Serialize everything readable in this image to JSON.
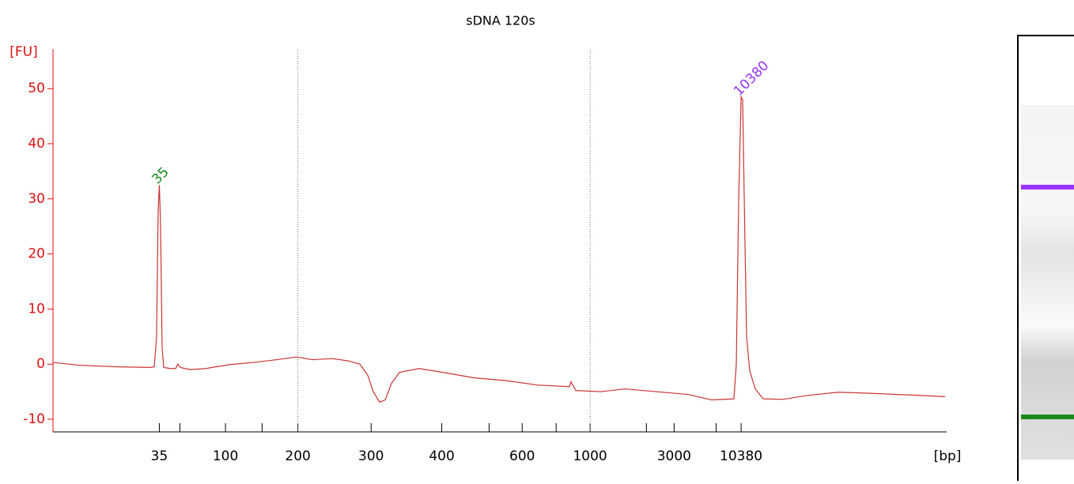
{
  "chart_data": {
    "type": "line",
    "title": "sDNA 120s",
    "y_label": "[FU]",
    "x_label": "[bp]",
    "xlim": [
      0,
      100
    ],
    "ylim": [
      -12.3,
      57.2
    ],
    "yticks": [
      -10,
      0,
      10,
      20,
      30,
      40,
      50
    ],
    "xticks": [
      {
        "value": 11.9,
        "label": "35"
      },
      {
        "value": 19.3,
        "label": "100"
      },
      {
        "value": 27.4,
        "label": "200"
      },
      {
        "value": 35.6,
        "label": "300"
      },
      {
        "value": 43.5,
        "label": "400"
      },
      {
        "value": 52.5,
        "label": "600"
      },
      {
        "value": 60.1,
        "label": "1000"
      },
      {
        "value": 69.5,
        "label": "3000"
      },
      {
        "value": 77.0,
        "label": "10380"
      }
    ],
    "minor_xticks": [
      14.2,
      23.4,
      48.8,
      56.3,
      66.4,
      74.2
    ],
    "marker_lines": [
      27.4,
      60.1
    ],
    "series": [
      {
        "color": "#cc3333",
        "x": [
          0,
          2.92,
          7.35,
          10.88,
          11.33,
          11.59,
          11.77,
          11.9,
          12.04,
          12.21,
          12.39,
          13.1,
          13.72,
          13.98,
          14.25,
          15.31,
          17.08,
          19.73,
          22.39,
          25.04,
          27.26,
          29.03,
          31.24,
          33.01,
          34.34,
          35.22,
          35.84,
          36.55,
          37.17,
          37.88,
          38.76,
          40.97,
          43.63,
          47.17,
          50.71,
          54.25,
          57.79,
          57.96,
          58.5,
          61.33,
          63.98,
          67.52,
          71.06,
          73.72,
          76.19,
          76.46,
          76.73,
          77.0,
          77.17,
          77.35,
          77.61,
          77.96,
          78.58,
          79.47,
          81.68,
          84.34,
          87.88,
          91.42,
          95.84,
          99.82
        ],
        "values": [
          0.3,
          -0.2,
          -0.5,
          -0.6,
          -0.5,
          5,
          28,
          32.5,
          25,
          3,
          -0.6,
          -0.8,
          -0.8,
          0,
          -0.6,
          -1.0,
          -0.8,
          -0.1,
          0.3,
          0.8,
          1.3,
          0.8,
          1.0,
          0.6,
          0,
          -2,
          -5,
          -6.9,
          -6.5,
          -3.5,
          -1.5,
          -0.8,
          -1.5,
          -2.5,
          -3.0,
          -3.8,
          -4.1,
          -3.2,
          -4.8,
          -5.0,
          -4.5,
          -5.0,
          -5.5,
          -6.5,
          -6.3,
          0,
          30,
          48.5,
          48,
          30,
          5,
          -1.2,
          -4.5,
          -6.3,
          -6.4,
          -5.7,
          -5.1,
          -5.3,
          -5.6,
          -5.9
        ]
      }
    ],
    "peaks": [
      {
        "label": "35",
        "x": 11.9,
        "y": 32.5,
        "color": "#1a8a1a"
      },
      {
        "label": "10380",
        "x": 77.0,
        "y": 48.5,
        "color": "#9933ff"
      }
    ]
  }
}
